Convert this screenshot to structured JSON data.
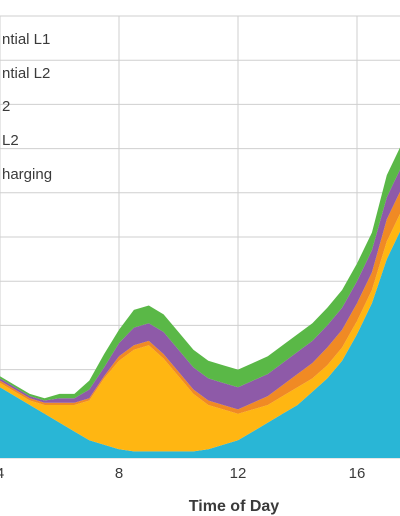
{
  "chart_data": {
    "type": "area",
    "stacked": true,
    "xlabel": "Time of Day",
    "x_ticks": [
      "4",
      "8",
      "12",
      "16"
    ],
    "xlim": [
      4,
      17.5
    ],
    "ylim": [
      0,
      100
    ],
    "grid": true,
    "legend_placement": "top-left",
    "legend": [
      "ntial L1",
      "ntial L2",
      "2",
      "L2",
      "harging"
    ],
    "series": [
      {
        "color": "#29b6d6",
        "points": [
          [
            4,
            16
          ],
          [
            4.5,
            14
          ],
          [
            5,
            12
          ],
          [
            5.5,
            10
          ],
          [
            6,
            8
          ],
          [
            6.5,
            6
          ],
          [
            7,
            4
          ],
          [
            7.5,
            3
          ],
          [
            8,
            2
          ],
          [
            8.5,
            1.5
          ],
          [
            9,
            1.5
          ],
          [
            9.5,
            1.5
          ],
          [
            10,
            1.5
          ],
          [
            10.5,
            1.5
          ],
          [
            11,
            2
          ],
          [
            11.5,
            3
          ],
          [
            12,
            4
          ],
          [
            12.5,
            6
          ],
          [
            13,
            8
          ],
          [
            13.5,
            10
          ],
          [
            14,
            12
          ],
          [
            14.5,
            15
          ],
          [
            15,
            18
          ],
          [
            15.5,
            22
          ],
          [
            16,
            28
          ],
          [
            16.5,
            35
          ],
          [
            17,
            45
          ],
          [
            17.5,
            52
          ]
        ]
      },
      {
        "color": "#ffb612",
        "points": [
          [
            4,
            1
          ],
          [
            4.5,
            1
          ],
          [
            5,
            1
          ],
          [
            5.5,
            2
          ],
          [
            6,
            4
          ],
          [
            6.5,
            6
          ],
          [
            7,
            9
          ],
          [
            7.5,
            15
          ],
          [
            8,
            20
          ],
          [
            8.5,
            23
          ],
          [
            9,
            24
          ],
          [
            9.5,
            21
          ],
          [
            10,
            17
          ],
          [
            10.5,
            13
          ],
          [
            11,
            10
          ],
          [
            11.5,
            8
          ],
          [
            12,
            6
          ],
          [
            12.5,
            5
          ],
          [
            13,
            4
          ],
          [
            13.5,
            4
          ],
          [
            14,
            4
          ],
          [
            14.5,
            3
          ],
          [
            15,
            3
          ],
          [
            15.5,
            3
          ],
          [
            16,
            3
          ],
          [
            16.5,
            3
          ],
          [
            17,
            4
          ],
          [
            17.5,
            4
          ]
        ]
      },
      {
        "color": "#f08a24",
        "points": [
          [
            4,
            0.5
          ],
          [
            4.5,
            0.5
          ],
          [
            5,
            0.5
          ],
          [
            5.5,
            0.5
          ],
          [
            6,
            0.5
          ],
          [
            6.5,
            0.5
          ],
          [
            7,
            0.5
          ],
          [
            7.5,
            0.5
          ],
          [
            8,
            1
          ],
          [
            8.5,
            1
          ],
          [
            9,
            1
          ],
          [
            9.5,
            1
          ],
          [
            10,
            1
          ],
          [
            10.5,
            1
          ],
          [
            11,
            1
          ],
          [
            11.5,
            1
          ],
          [
            12,
            1
          ],
          [
            12.5,
            1.5
          ],
          [
            13,
            2
          ],
          [
            13.5,
            2.5
          ],
          [
            14,
            3
          ],
          [
            14.5,
            3.5
          ],
          [
            15,
            4
          ],
          [
            15.5,
            4
          ],
          [
            16,
            4
          ],
          [
            16.5,
            4
          ],
          [
            17,
            5
          ],
          [
            17.5,
            5
          ]
        ]
      },
      {
        "color": "#8e5aa8",
        "points": [
          [
            4,
            0.5
          ],
          [
            4.5,
            0.5
          ],
          [
            5,
            0.5
          ],
          [
            5.5,
            0.5
          ],
          [
            6,
            1
          ],
          [
            6.5,
            1
          ],
          [
            7,
            2
          ],
          [
            7.5,
            2
          ],
          [
            8,
            3
          ],
          [
            8.5,
            4
          ],
          [
            9,
            4
          ],
          [
            9.5,
            5
          ],
          [
            10,
            5
          ],
          [
            10.5,
            5
          ],
          [
            11,
            5
          ],
          [
            11.5,
            5
          ],
          [
            12,
            5
          ],
          [
            12.5,
            5
          ],
          [
            13,
            5
          ],
          [
            13.5,
            5
          ],
          [
            14,
            5
          ],
          [
            14.5,
            5
          ],
          [
            15,
            5
          ],
          [
            15.5,
            5
          ],
          [
            16,
            5
          ],
          [
            16.5,
            5
          ],
          [
            17,
            5
          ],
          [
            17.5,
            5
          ]
        ]
      },
      {
        "color": "#5ab847",
        "points": [
          [
            4,
            0.5
          ],
          [
            4.5,
            0.5
          ],
          [
            5,
            0.5
          ],
          [
            5.5,
            0.5
          ],
          [
            6,
            1
          ],
          [
            6.5,
            1
          ],
          [
            7,
            2
          ],
          [
            7.5,
            3
          ],
          [
            8,
            3
          ],
          [
            8.5,
            4
          ],
          [
            9,
            4
          ],
          [
            9.5,
            4
          ],
          [
            10,
            4
          ],
          [
            10.5,
            4
          ],
          [
            11,
            4
          ],
          [
            11.5,
            4
          ],
          [
            12,
            4
          ],
          [
            12.5,
            4
          ],
          [
            13,
            4
          ],
          [
            13.5,
            4
          ],
          [
            14,
            4
          ],
          [
            14.5,
            4
          ],
          [
            15,
            4
          ],
          [
            15.5,
            4
          ],
          [
            16,
            4
          ],
          [
            16.5,
            4
          ],
          [
            17,
            5
          ],
          [
            17.5,
            5
          ]
        ]
      }
    ]
  }
}
